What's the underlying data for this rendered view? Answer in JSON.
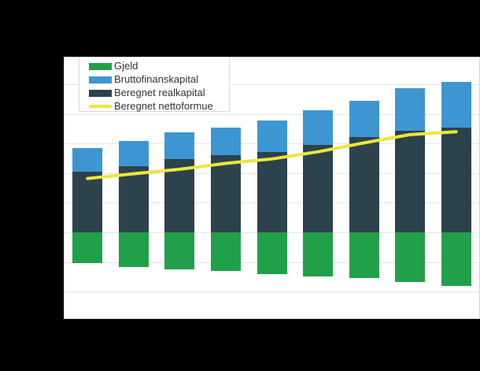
{
  "page": {
    "background_color": "#000000",
    "title": ""
  },
  "colors": {
    "gjeld": "#21a04a",
    "bruttofinanskapital": "#3d96d2",
    "beregnet_realkapital": "#2c424c",
    "beregnet_nettoformue": "#ece73b",
    "plot_background": "#ffffff",
    "gridline": "#e4e4e4",
    "plot_border": "#d4d4d4",
    "legend_text": "#333333"
  },
  "legend": {
    "items": [
      {
        "label": "Gjeld",
        "swatch": "bar",
        "color": "#21a04a"
      },
      {
        "label": "Bruttofinanskapital",
        "swatch": "bar",
        "color": "#3d96d2"
      },
      {
        "label": "Beregnet realkapital",
        "swatch": "bar",
        "color": "#2c424c"
      },
      {
        "label": "Beregnet nettoformue",
        "swatch": "line",
        "color": "#ece73b"
      }
    ]
  },
  "chart_data": {
    "type": "bar",
    "subtype": "stacked-bars-with-line-overlay",
    "title": "",
    "xlabel": "",
    "ylabel": "",
    "categories": [
      "",
      "",
      "",
      "",
      "",
      "",
      "",
      "",
      ""
    ],
    "x_tick_labels_visible": false,
    "y_tick_labels_visible": false,
    "y_unit_note": "values estimated in gridline units; axis tick labels are not visible in the image",
    "ylim": [
      -2.95,
      5.9
    ],
    "grid": "horizontal",
    "legend_position": "top-left-inside",
    "series": [
      {
        "name": "Gjeld",
        "type": "bar",
        "color": "#21a04a",
        "values": [
          -1.05,
          -1.18,
          -1.26,
          -1.3,
          -1.41,
          -1.5,
          -1.54,
          -1.68,
          -1.82
        ]
      },
      {
        "name": "Beregnet realkapital",
        "type": "bar",
        "color": "#2c424c",
        "values": [
          2.06,
          2.24,
          2.48,
          2.61,
          2.72,
          2.96,
          3.21,
          3.43,
          3.54
        ]
      },
      {
        "name": "Bruttofinanskapital",
        "type": "bar",
        "color": "#3d96d2",
        "values": [
          0.79,
          0.85,
          0.89,
          0.94,
          1.05,
          1.15,
          1.24,
          1.44,
          1.53
        ]
      },
      {
        "name": "Beregnet nettoformue",
        "type": "line",
        "color": "#ece73b",
        "values": [
          1.82,
          1.98,
          2.13,
          2.33,
          2.48,
          2.72,
          3.02,
          3.3,
          3.4
        ]
      }
    ]
  }
}
